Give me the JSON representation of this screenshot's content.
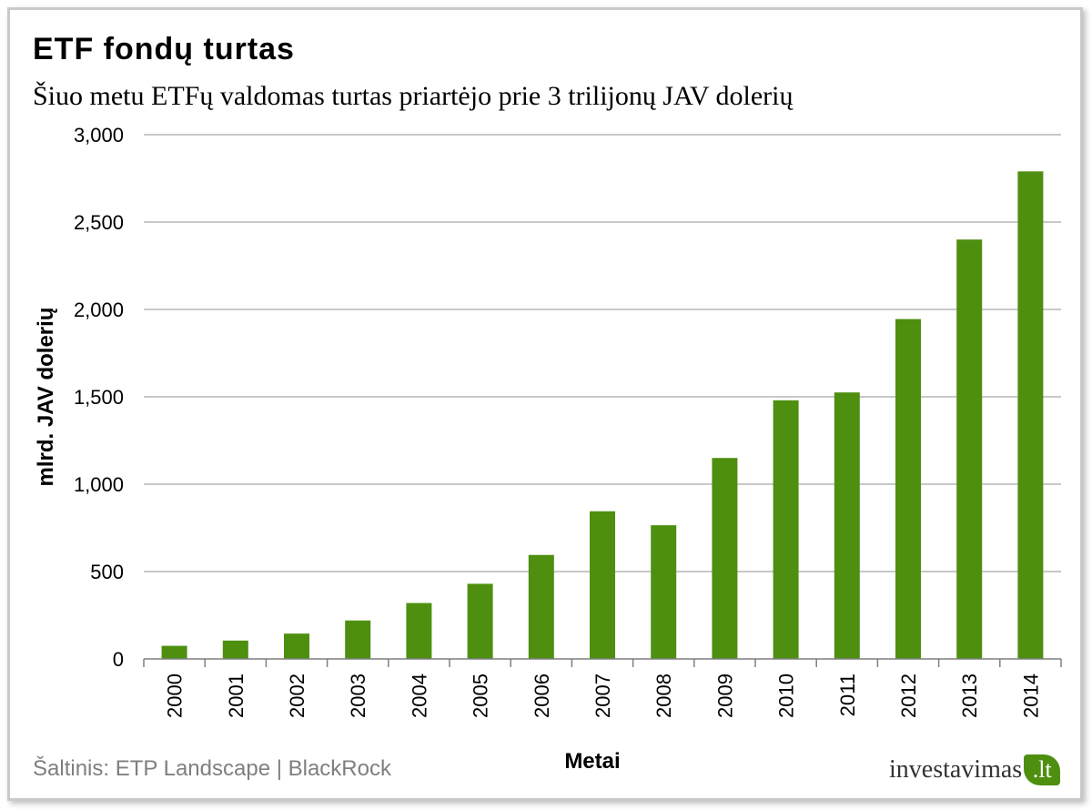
{
  "title": "ETF fondų turtas",
  "subtitle": "Šiuo metu ETFų valdomas turtas priartėjo prie 3 trilijonų JAV dolerių",
  "source": "Šaltinis: ETP Landscape | BlackRock",
  "logo": {
    "word": "investavimas",
    "leaf_text": ".lt"
  },
  "colors": {
    "bar": "#4e8f10",
    "grid": "#a6a6a6",
    "axis_text": "#000000"
  },
  "chart_data": {
    "type": "bar",
    "title": "",
    "xlabel": "Metai",
    "ylabel": "mlrd. JAV dolerių",
    "ylim": [
      0,
      3000
    ],
    "yticks": [
      0,
      500,
      1000,
      1500,
      2000,
      2500,
      3000
    ],
    "ytick_labels": [
      "0",
      "500",
      "1,000",
      "1,500",
      "2,000",
      "2,500",
      "3,000"
    ],
    "grid": true,
    "categories": [
      "2000",
      "2001",
      "2002",
      "2003",
      "2004",
      "2005",
      "2006",
      "2007",
      "2008",
      "2009",
      "2010",
      "2011",
      "2012",
      "2013",
      "2014"
    ],
    "values": [
      75,
      105,
      145,
      220,
      320,
      430,
      595,
      845,
      765,
      1150,
      1480,
      1525,
      1945,
      2400,
      2790
    ]
  }
}
